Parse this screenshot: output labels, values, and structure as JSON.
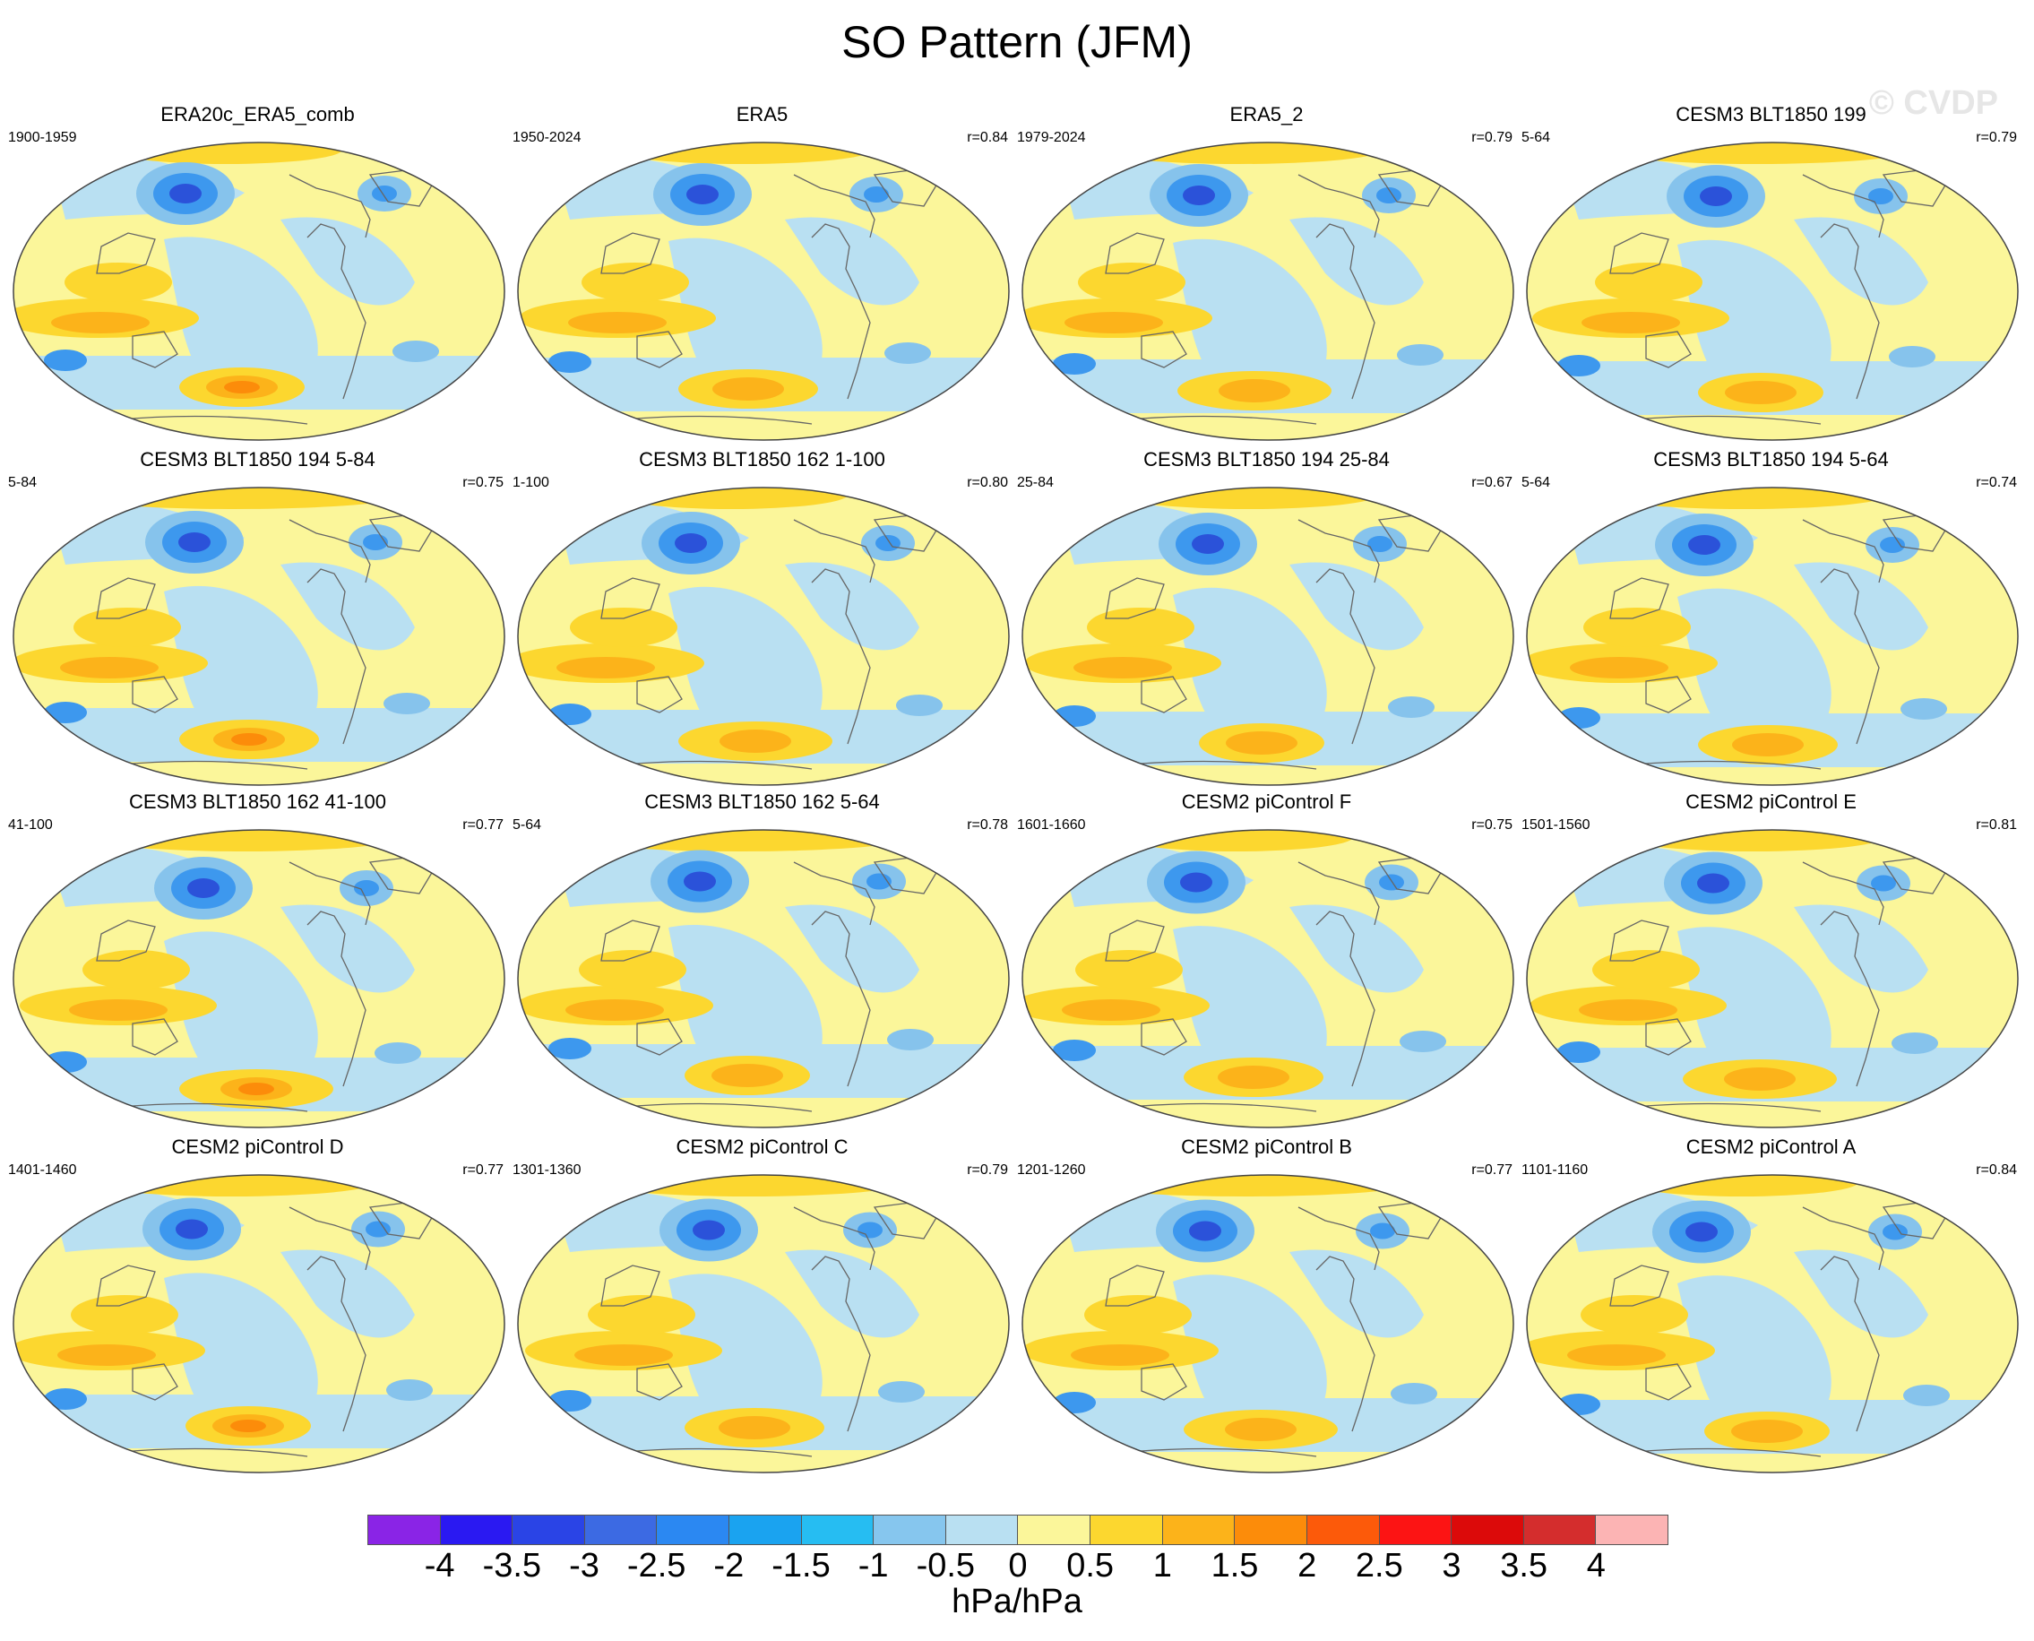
{
  "figure": {
    "title": "SO Pattern (JFM)",
    "watermark": "© CVDP",
    "units": "hPa/hPa"
  },
  "panels": [
    {
      "title": "ERA20c_ERA5_comb",
      "years": "1900-1959",
      "r": ""
    },
    {
      "title": "ERA5",
      "years": "1950-2024",
      "r": "r=0.84"
    },
    {
      "title": "ERA5_2",
      "years": "1979-2024",
      "r": "r=0.79"
    },
    {
      "title": "CESM3 BLT1850 199",
      "years": "5-64",
      "r": "r=0.79"
    },
    {
      "title": "CESM3 BLT1850 194 5-84",
      "years": "5-84",
      "r": "r=0.75"
    },
    {
      "title": "CESM3 BLT1850 162 1-100",
      "years": "1-100",
      "r": "r=0.80"
    },
    {
      "title": "CESM3 BLT1850 194 25-84",
      "years": "25-84",
      "r": "r=0.67"
    },
    {
      "title": "CESM3 BLT1850 194 5-64",
      "years": "5-64",
      "r": "r=0.74"
    },
    {
      "title": "CESM3 BLT1850 162 41-100",
      "years": "41-100",
      "r": "r=0.77"
    },
    {
      "title": "CESM3 BLT1850 162 5-64",
      "years": "5-64",
      "r": "r=0.78"
    },
    {
      "title": "CESM2 piControl F",
      "years": "1601-1660",
      "r": "r=0.75"
    },
    {
      "title": "CESM2 piControl E",
      "years": "1501-1560",
      "r": "r=0.81"
    },
    {
      "title": "CESM2 piControl D",
      "years": "1401-1460",
      "r": "r=0.77"
    },
    {
      "title": "CESM2 piControl C",
      "years": "1301-1360",
      "r": "r=0.79"
    },
    {
      "title": "CESM2 piControl B",
      "years": "1201-1260",
      "r": "r=0.77"
    },
    {
      "title": "CESM2 piControl A",
      "years": "1101-1160",
      "r": "r=0.84"
    }
  ],
  "colorbar": {
    "colors": [
      "#8a24e6",
      "#2a19f2",
      "#2a44e6",
      "#3c6ae3",
      "#2b88f2",
      "#1aa3f0",
      "#26bdf2",
      "#86c6ee",
      "#b9e0f2",
      "#fbf69a",
      "#fcd72f",
      "#fcb31a",
      "#fc8c0a",
      "#fc5a0a",
      "#fc1414",
      "#dc0a0a",
      "#d42d2d",
      "#fcb4b4"
    ],
    "ticks": [
      "-4",
      "-3.5",
      "-3",
      "-2.5",
      "-2",
      "-1.5",
      "-1",
      "-0.5",
      "0",
      "0.5",
      "1",
      "1.5",
      "2",
      "2.5",
      "3",
      "3.5",
      "4"
    ]
  },
  "palette": {
    "neg_strong": "#2b52d9",
    "neg_mid": "#3d98ee",
    "neg_light": "#86c3ec",
    "neg_faint": "#b9e0f2",
    "pos_faint": "#fbf69a",
    "pos_light": "#fcd72f",
    "pos_mid": "#fcb31a",
    "pos_strong": "#fc8c0a",
    "land_outline": "#666666"
  }
}
